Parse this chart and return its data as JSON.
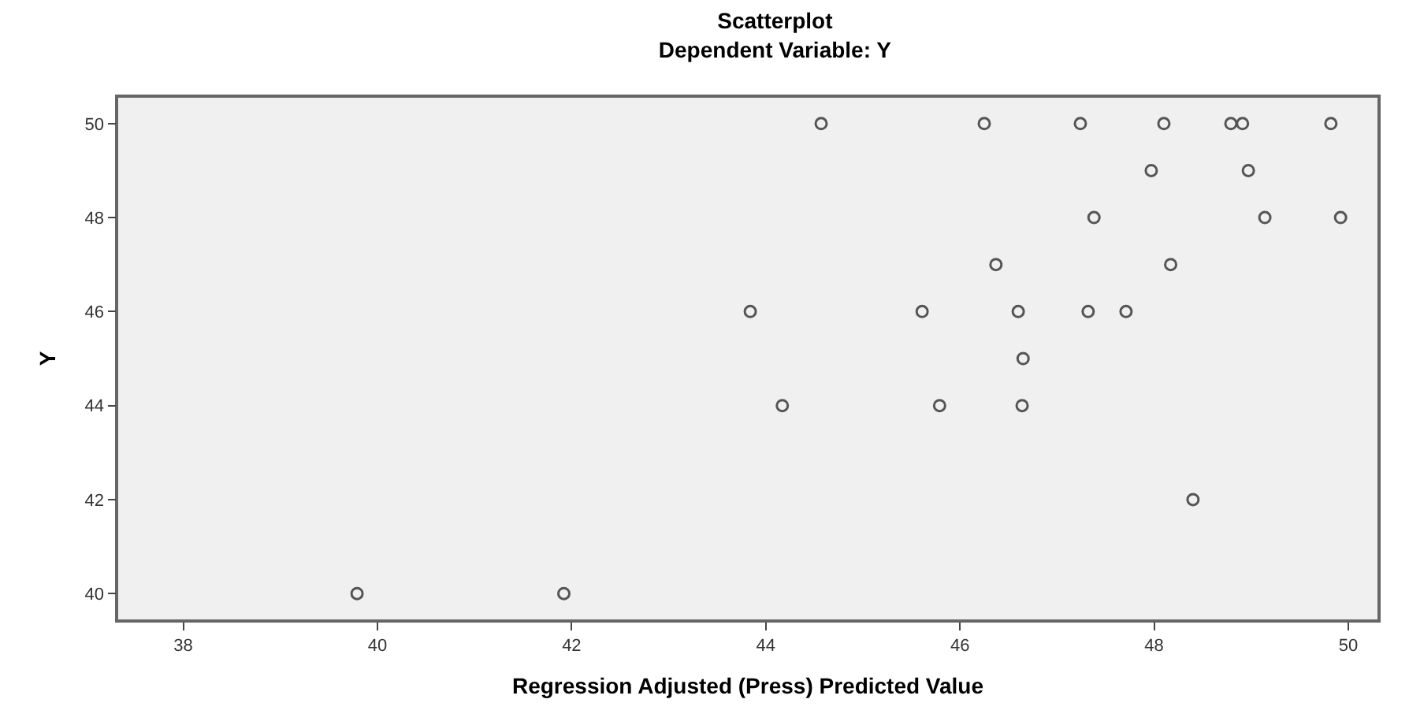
{
  "chart_data": {
    "type": "scatter",
    "title": "Scatterplot",
    "subtitle": "Dependent Variable: Y",
    "xlabel": "Regression Adjusted (Press) Predicted Value",
    "ylabel": "Y",
    "x": [
      44.57,
      46.25,
      47.24,
      48.1,
      48.79,
      48.91,
      49.82,
      47.97,
      48.97,
      47.38,
      49.14,
      49.92,
      46.37,
      48.17,
      43.84,
      45.61,
      46.6,
      47.32,
      47.71,
      46.65,
      44.17,
      45.79,
      46.64,
      48.4,
      39.79,
      41.92
    ],
    "series": [
      {
        "color": "#555555",
        "values": [
          50,
          50,
          50,
          50,
          50,
          50,
          50,
          49,
          49,
          48,
          48,
          48,
          47,
          47,
          46,
          46,
          46,
          46,
          46,
          45,
          44,
          44,
          44,
          42,
          40,
          40
        ]
      }
    ],
    "xlim": [
      37.33,
      50.3
    ],
    "ylim": [
      39.45,
      50.55
    ],
    "xticks": [
      38,
      40,
      42,
      44,
      46,
      48,
      50
    ],
    "yticks": [
      40,
      42,
      44,
      46,
      48,
      50
    ],
    "grid": false,
    "marker": "circle"
  }
}
